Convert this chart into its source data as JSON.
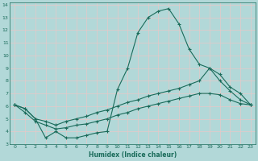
{
  "xlabel": "Humidex (Indice chaleur)",
  "background_color": "#b2d8d8",
  "grid_color": "#d4ecec",
  "line_color": "#1a6b5a",
  "xlim": [
    -0.5,
    23.5
  ],
  "ylim": [
    3,
    14.2
  ],
  "xticks": [
    0,
    1,
    2,
    3,
    4,
    5,
    6,
    7,
    8,
    9,
    10,
    11,
    12,
    13,
    14,
    15,
    16,
    17,
    18,
    19,
    20,
    21,
    22,
    23
  ],
  "yticks": [
    3,
    4,
    5,
    6,
    7,
    8,
    9,
    10,
    11,
    12,
    13,
    14
  ],
  "line1_x": [
    0,
    1,
    2,
    3,
    4,
    5,
    6,
    7,
    8,
    9,
    10,
    11,
    12,
    13,
    14,
    15,
    16,
    17,
    18,
    19,
    20,
    21,
    22,
    23
  ],
  "line1_y": [
    6.1,
    5.8,
    5.0,
    3.5,
    4.0,
    3.5,
    3.5,
    3.7,
    3.9,
    4.0,
    7.3,
    9.0,
    11.8,
    13.0,
    13.5,
    13.7,
    12.5,
    10.5,
    9.3,
    9.0,
    8.0,
    7.2,
    6.5,
    6.1
  ],
  "line2_x": [
    0,
    1,
    2,
    3,
    4,
    5,
    6,
    7,
    8,
    9,
    10,
    11,
    12,
    13,
    14,
    15,
    16,
    17,
    18,
    19,
    20,
    21,
    22,
    23
  ],
  "line2_y": [
    6.1,
    5.8,
    5.0,
    4.8,
    4.5,
    4.8,
    5.0,
    5.2,
    5.5,
    5.7,
    6.0,
    6.3,
    6.5,
    6.8,
    7.0,
    7.2,
    7.4,
    7.7,
    8.0,
    9.0,
    8.5,
    7.5,
    7.0,
    6.1
  ],
  "line3_x": [
    0,
    1,
    2,
    3,
    4,
    5,
    6,
    7,
    8,
    9,
    10,
    11,
    12,
    13,
    14,
    15,
    16,
    17,
    18,
    19,
    20,
    21,
    22,
    23
  ],
  "line3_y": [
    6.1,
    5.5,
    4.8,
    4.5,
    4.2,
    4.3,
    4.5,
    4.6,
    4.8,
    5.0,
    5.3,
    5.5,
    5.8,
    6.0,
    6.2,
    6.4,
    6.6,
    6.8,
    7.0,
    7.0,
    6.9,
    6.5,
    6.2,
    6.1
  ]
}
